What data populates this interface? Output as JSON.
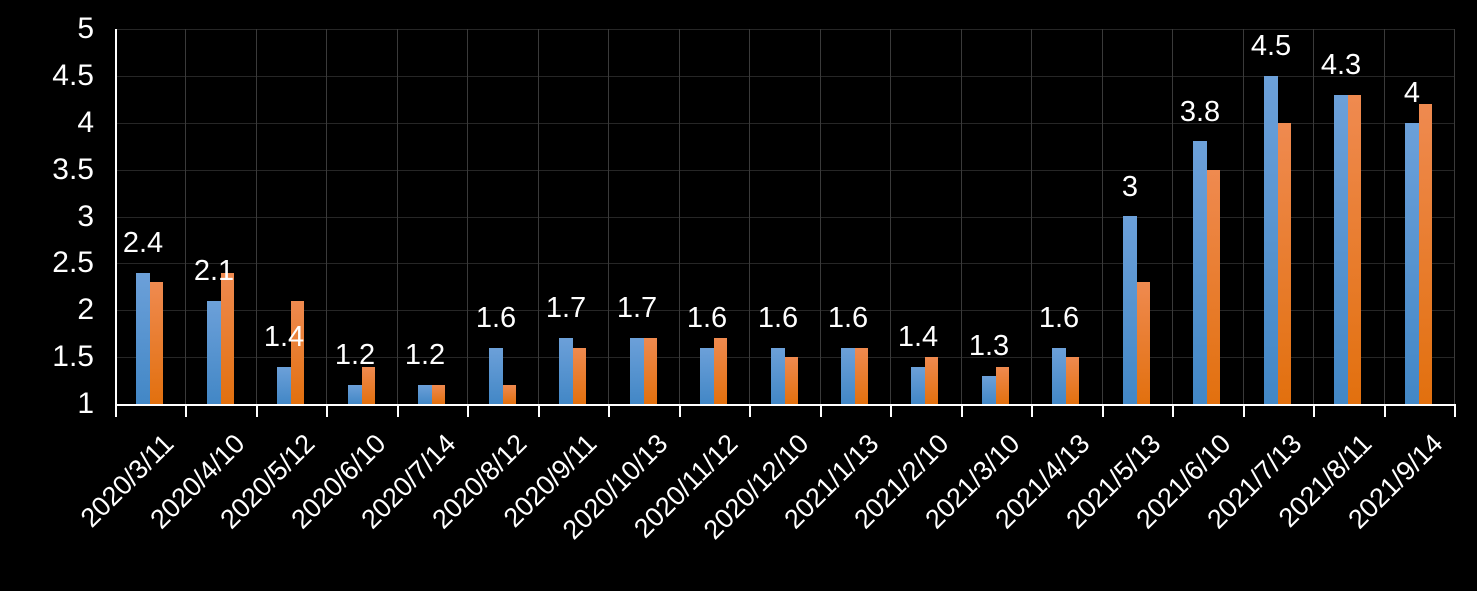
{
  "background": "#000000",
  "chart_data": {
    "type": "bar",
    "title": "",
    "xlabel": "",
    "ylabel": "",
    "categories": [
      "2020/3/11",
      "2020/4/10",
      "2020/5/12",
      "2020/6/10",
      "2020/7/14",
      "2020/8/12",
      "2020/9/11",
      "2020/10/13",
      "2020/11/12",
      "2020/12/10",
      "2021/1/13",
      "2021/2/10",
      "2021/3/10",
      "2021/4/13",
      "2021/5/13",
      "2021/6/10",
      "2021/7/13",
      "2021/8/11",
      "2021/9/14"
    ],
    "series": [
      {
        "name": "series-1-blue",
        "color_top": "#6ca0d9",
        "color_bottom": "#4287c6",
        "values": [
          2.4,
          2.1,
          1.4,
          1.2,
          1.2,
          1.6,
          1.7,
          1.7,
          1.6,
          1.6,
          1.6,
          1.4,
          1.3,
          1.6,
          3,
          3.8,
          4.5,
          4.3,
          4
        ]
      },
      {
        "name": "series-2-orange",
        "color_top": "#ef8a50",
        "color_bottom": "#e2700e",
        "values": [
          2.3,
          2.4,
          2.1,
          1.4,
          1.2,
          1.2,
          1.6,
          1.7,
          1.7,
          1.5,
          1.6,
          1.5,
          1.4,
          1.5,
          2.3,
          3.5,
          4,
          4.3,
          4.2
        ]
      }
    ],
    "data_labels": [
      "2.4",
      "2.1",
      "1.4",
      "1.2",
      "1.2",
      "1.6",
      "1.7",
      "1.7",
      "1.6",
      "1.6",
      "1.6",
      "1.4",
      "1.3",
      "1.6",
      "3",
      "3.8",
      "4.5",
      "4.3",
      "4"
    ],
    "data_label_series": 0,
    "ylim": [
      1,
      5
    ],
    "ytick_step": 0.5,
    "yticks": [
      "5",
      "4.5",
      "4",
      "3.5",
      "3",
      "2.5",
      "2",
      "1.5",
      "1"
    ],
    "grid": true,
    "legend": "none",
    "text_color": "#ffffff",
    "axis_color": "#ffffff",
    "h_gridline_color": "#262626",
    "v_gridline_color": "#3a3a3a"
  }
}
